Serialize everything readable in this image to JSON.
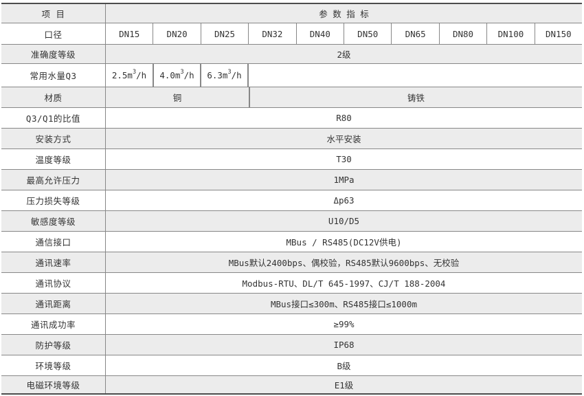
{
  "colors": {
    "row_shade": "#ececec",
    "inner_border": "#878787",
    "outer_border": "#4c4c4c",
    "text": "#333333"
  },
  "header": {
    "item_label": "项 目",
    "param_label": "参 数 指 标"
  },
  "diameter": {
    "label": "口径",
    "values": [
      "DN15",
      "DN20",
      "DN25",
      "DN32",
      "DN40",
      "DN50",
      "DN65",
      "DN80",
      "DN100",
      "DN150"
    ]
  },
  "accuracy": {
    "label": "准确度等级",
    "value": "2级"
  },
  "flow": {
    "label": "常用水量Q3",
    "values": [
      {
        "pre": "2.5m",
        "sup": "3",
        "post": "/h"
      },
      {
        "pre": "4.0m",
        "sup": "3",
        "post": "/h"
      },
      {
        "pre": "6.3m",
        "sup": "3",
        "post": "/h"
      }
    ]
  },
  "material": {
    "label": "材质",
    "copper": "铜",
    "cast_iron": "铸铁"
  },
  "simple_rows": [
    {
      "label": "Q3/Q1的比值",
      "value": "R80"
    },
    {
      "label": "安装方式",
      "value": "水平安装"
    },
    {
      "label": "温度等级",
      "value": "T30"
    },
    {
      "label": "最高允许压力",
      "value": "1MPa"
    },
    {
      "label": "压力损失等级",
      "value": "Δp63"
    },
    {
      "label": "敏感度等级",
      "value": "U10/D5"
    },
    {
      "label": "通信接口",
      "value": "MBus / RS485(DC12V供电)"
    },
    {
      "label": "通讯速率",
      "value": "MBus默认2400bps、偶校验，RS485默认9600bps、无校验"
    },
    {
      "label": "通讯协议",
      "value": "Modbus-RTU、DL/T 645-1997、CJ/T 188-2004"
    },
    {
      "label": "通讯距离",
      "value": "MBus接口≤300m、RS485接口≤1000m"
    },
    {
      "label": "通讯成功率",
      "value": "≥99%"
    },
    {
      "label": "防护等级",
      "value": "IP68"
    },
    {
      "label": "环境等级",
      "value": "B级"
    },
    {
      "label": "电磁环境等级",
      "value": "E1级"
    }
  ]
}
